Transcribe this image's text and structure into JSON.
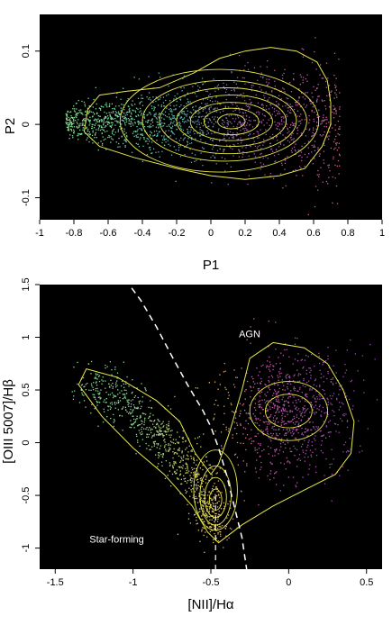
{
  "chart_data": [
    {
      "type": "scatter",
      "xlabel": "P1",
      "ylabel": "P2",
      "xlim": [
        -1,
        1
      ],
      "ylim": [
        -0.13,
        0.15
      ],
      "xticks": [
        {
          "v": -1,
          "label": "-1"
        },
        {
          "v": -0.8,
          "label": "-0.8"
        },
        {
          "v": -0.6,
          "label": "-0.6"
        },
        {
          "v": -0.4,
          "label": "-0.4"
        },
        {
          "v": -0.2,
          "label": "-0.2"
        },
        {
          "v": 0,
          "label": "0"
        },
        {
          "v": 0.2,
          "label": "0.2"
        },
        {
          "v": 0.4,
          "label": "0.4"
        },
        {
          "v": 0.6,
          "label": "0.6"
        },
        {
          "v": 0.8,
          "label": "0.8"
        },
        {
          "v": 1,
          "label": "1"
        }
      ],
      "yticks": [
        {
          "v": -0.1,
          "label": "-0.1"
        },
        {
          "v": 0,
          "label": "0"
        },
        {
          "v": 0.1,
          "label": "0.1"
        }
      ],
      "background": "#000000",
      "contour_color": "#e8e84a",
      "outer_contour": [
        [
          -0.72,
          0.02
        ],
        [
          -0.65,
          0.04
        ],
        [
          -0.5,
          0.045
        ],
        [
          -0.3,
          0.05
        ],
        [
          -0.1,
          0.07
        ],
        [
          0.05,
          0.09
        ],
        [
          0.2,
          0.1
        ],
        [
          0.35,
          0.105
        ],
        [
          0.5,
          0.1
        ],
        [
          0.62,
          0.085
        ],
        [
          0.68,
          0.06
        ],
        [
          0.7,
          0.03
        ],
        [
          0.7,
          0.0
        ],
        [
          0.65,
          -0.03
        ],
        [
          0.55,
          -0.06
        ],
        [
          0.4,
          -0.07
        ],
        [
          0.2,
          -0.075
        ],
        [
          0.0,
          -0.07
        ],
        [
          -0.2,
          -0.06
        ],
        [
          -0.45,
          -0.045
        ],
        [
          -0.65,
          -0.03
        ],
        [
          -0.74,
          -0.01
        ],
        [
          -0.72,
          0.02
        ]
      ],
      "inner_contours": [
        {
          "cx": 0.05,
          "cy": 0.005,
          "rx": 0.58,
          "ry": 0.07
        },
        {
          "cx": 0.08,
          "cy": 0.005,
          "rx": 0.48,
          "ry": 0.055
        },
        {
          "cx": 0.1,
          "cy": 0.005,
          "rx": 0.4,
          "ry": 0.045
        },
        {
          "cx": 0.12,
          "cy": 0.005,
          "rx": 0.32,
          "ry": 0.035
        },
        {
          "cx": 0.12,
          "cy": 0.004,
          "rx": 0.24,
          "ry": 0.026
        },
        {
          "cx": 0.12,
          "cy": 0.004,
          "rx": 0.16,
          "ry": 0.018
        },
        {
          "cx": 0.12,
          "cy": 0.004,
          "rx": 0.08,
          "ry": 0.01
        }
      ],
      "color_gradient": [
        {
          "x": -1.0,
          "color": "#8fe08a"
        },
        {
          "x": -0.6,
          "color": "#7ad99a"
        },
        {
          "x": -0.2,
          "color": "#56b6a8"
        },
        {
          "x": 0.2,
          "color": "#9b5a9e"
        },
        {
          "x": 0.6,
          "color": "#c25aa8"
        },
        {
          "x": 1.0,
          "color": "#e07060"
        }
      ]
    },
    {
      "type": "scatter",
      "xlabel": "[NII]/Hα",
      "ylabel": "[OIII 5007]/Hβ",
      "xlim": [
        -1.6,
        0.6
      ],
      "ylim": [
        -1.2,
        1.5
      ],
      "xticks": [
        {
          "v": -1.5,
          "label": "-1.5"
        },
        {
          "v": -1,
          "label": "-1"
        },
        {
          "v": -0.5,
          "label": "-0.5"
        },
        {
          "v": 0,
          "label": "0"
        },
        {
          "v": 0.5,
          "label": "0.5"
        }
      ],
      "yticks": [
        {
          "v": -1,
          "label": "-1"
        },
        {
          "v": -0.5,
          "label": "-0.5"
        },
        {
          "v": 0,
          "label": "0"
        },
        {
          "v": 0.5,
          "label": "0.5"
        },
        {
          "v": 1,
          "label": "1"
        },
        {
          "v": 1.5,
          "label": "1.5"
        }
      ],
      "background": "#000000",
      "contour_color": "#e8e84a",
      "annotations": [
        {
          "text": "AGN",
          "x": -0.32,
          "y": 1.0
        },
        {
          "text": "Star-forming",
          "x": -1.28,
          "y": -0.95
        }
      ],
      "kauffmann_line": [
        [
          -1.05,
          1.55
        ],
        [
          -0.95,
          1.35
        ],
        [
          -0.85,
          1.1
        ],
        [
          -0.75,
          0.82
        ],
        [
          -0.65,
          0.55
        ],
        [
          -0.55,
          0.3
        ],
        [
          -0.5,
          0.15
        ],
        [
          -0.45,
          -0.05
        ],
        [
          -0.4,
          -0.3
        ],
        [
          -0.35,
          -0.6
        ],
        [
          -0.3,
          -0.9
        ],
        [
          -0.27,
          -1.2
        ]
      ],
      "sf_boundary_line": [
        [
          -0.47,
          -0.5
        ],
        [
          -0.47,
          -1.2
        ]
      ],
      "outer_contour": [
        [
          -1.3,
          0.7
        ],
        [
          -1.1,
          0.62
        ],
        [
          -0.85,
          0.4
        ],
        [
          -0.7,
          0.2
        ],
        [
          -0.6,
          -0.1
        ],
        [
          -0.5,
          -0.3
        ],
        [
          -0.45,
          -0.2
        ],
        [
          -0.38,
          0.1
        ],
        [
          -0.3,
          0.5
        ],
        [
          -0.25,
          0.8
        ],
        [
          -0.1,
          0.95
        ],
        [
          0.1,
          0.9
        ],
        [
          0.25,
          0.75
        ],
        [
          0.35,
          0.5
        ],
        [
          0.42,
          0.2
        ],
        [
          0.4,
          -0.1
        ],
        [
          0.3,
          -0.3
        ],
        [
          0.1,
          -0.45
        ],
        [
          -0.1,
          -0.6
        ],
        [
          -0.3,
          -0.78
        ],
        [
          -0.45,
          -0.95
        ],
        [
          -0.52,
          -0.85
        ],
        [
          -0.62,
          -0.6
        ],
        [
          -0.8,
          -0.3
        ],
        [
          -1.0,
          -0.05
        ],
        [
          -1.2,
          0.25
        ],
        [
          -1.35,
          0.55
        ],
        [
          -1.3,
          0.7
        ]
      ],
      "inner_contours": [
        {
          "cx": -0.47,
          "cy": -0.45,
          "rx": 0.14,
          "ry": 0.38
        },
        {
          "cx": -0.47,
          "cy": -0.5,
          "rx": 0.1,
          "ry": 0.28
        },
        {
          "cx": -0.47,
          "cy": -0.52,
          "rx": 0.07,
          "ry": 0.19
        },
        {
          "cx": -0.47,
          "cy": -0.54,
          "rx": 0.04,
          "ry": 0.1
        },
        {
          "cx": 0.0,
          "cy": 0.3,
          "rx": 0.25,
          "ry": 0.28
        },
        {
          "cx": 0.0,
          "cy": 0.3,
          "rx": 0.15,
          "ry": 0.16
        }
      ],
      "sf_branch": [
        [
          -1.3,
          0.55
        ],
        [
          -1.1,
          0.45
        ],
        [
          -0.9,
          0.2
        ],
        [
          -0.75,
          -0.05
        ],
        [
          -0.6,
          -0.3
        ],
        [
          -0.5,
          -0.6
        ],
        [
          -0.47,
          -0.8
        ]
      ],
      "agn_cloud": {
        "cx": 0.0,
        "cy": 0.3,
        "sx": 0.22,
        "sy": 0.3
      },
      "color_gradient": [
        {
          "x": -1.6,
          "color": "#7edc8f"
        },
        {
          "x": -1.0,
          "color": "#90d99a"
        },
        {
          "x": -0.5,
          "color": "#e0c64f"
        },
        {
          "x": -0.2,
          "color": "#c35aa5"
        },
        {
          "x": 0.2,
          "color": "#a24fb0"
        },
        {
          "x": 0.6,
          "color": "#9a3cb0"
        }
      ]
    }
  ]
}
